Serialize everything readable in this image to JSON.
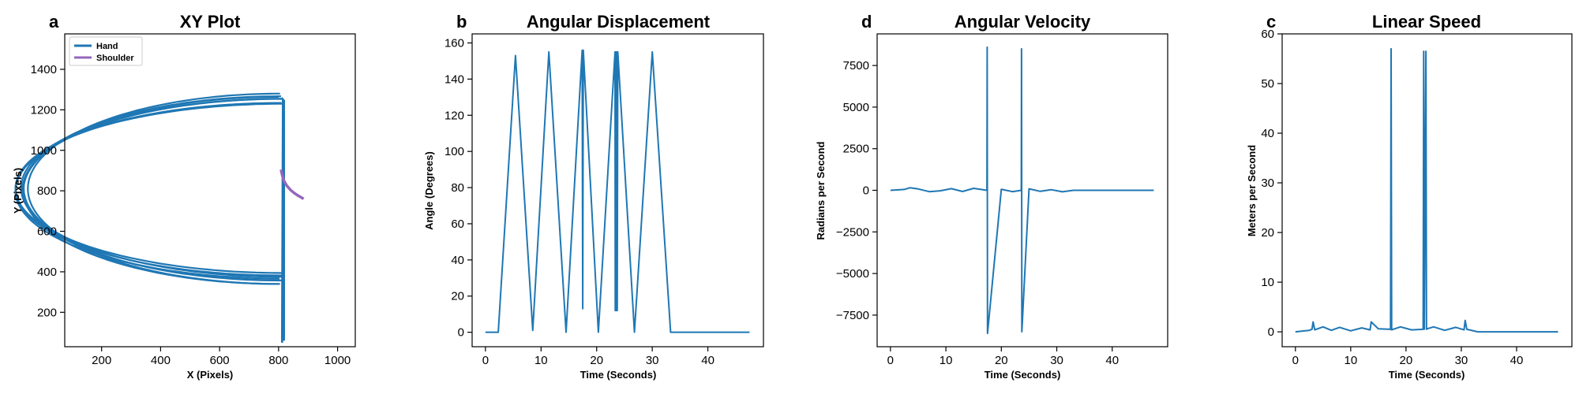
{
  "colors": {
    "hand": "#1f77b4",
    "shoulder": "#9467bd",
    "line": "#1f77b4"
  },
  "chart_data": [
    {
      "letter": "a",
      "type": "line",
      "title": "XY Plot",
      "xlabel": "X (Pixels)",
      "ylabel": "Y (Pixels)",
      "xlim": [
        75,
        1060
      ],
      "ylim": [
        30,
        1575
      ],
      "xticks": [
        200,
        400,
        600,
        800,
        1000
      ],
      "yticks": [
        200,
        400,
        600,
        800,
        1000,
        1200,
        1400
      ],
      "legend": "top-left",
      "series": [
        {
          "name": "Hand",
          "kind": "hand_arcs",
          "color": "#1f77b4"
        },
        {
          "name": "Shoulder",
          "color": "#9467bd",
          "x": [
            808,
            812,
            818,
            828,
            840,
            852,
            864,
            876,
            885
          ],
          "y": [
            905,
            880,
            850,
            825,
            805,
            790,
            778,
            768,
            760
          ]
        }
      ]
    },
    {
      "letter": "b",
      "type": "line",
      "title": "Angular Displacement",
      "xlabel": "Time (Seconds)",
      "ylabel": "Angle (Degrees)",
      "xlim": [
        -2.4,
        50.0
      ],
      "ylim": [
        -8,
        165
      ],
      "xticks": [
        0,
        10,
        20,
        30,
        40
      ],
      "yticks": [
        0,
        20,
        40,
        60,
        80,
        100,
        120,
        140,
        160
      ],
      "series": [
        {
          "name": "",
          "color": "#1f77b4",
          "x": [
            0,
            2.3,
            5.4,
            8.5,
            11.4,
            14.5,
            17.4,
            17.5,
            17.6,
            20.3,
            23.3,
            23.35,
            23.4,
            23.5,
            23.6,
            23.7,
            23.8,
            26.8,
            30.0,
            33.3,
            40.0,
            47.5
          ],
          "y": [
            0,
            0,
            153,
            1,
            155,
            0,
            156,
            13,
            156,
            0,
            155,
            12,
            155,
            12,
            155,
            12,
            155,
            0,
            155,
            0,
            0,
            0
          ]
        }
      ]
    },
    {
      "letter": "d",
      "type": "line",
      "title": "Angular Velocity",
      "xlabel": "Time (Seconds)",
      "ylabel": "Radians per Second",
      "xlim": [
        -2.4,
        50.0
      ],
      "ylim": [
        -9400,
        9400
      ],
      "xticks": [
        0,
        10,
        20,
        30,
        40
      ],
      "yticks": [
        -7500,
        -5000,
        -2500,
        0,
        2500,
        5000,
        7500
      ],
      "series": [
        {
          "name": "",
          "color": "#1f77b4",
          "x": [
            0,
            2.5,
            3.5,
            5,
            7,
            9,
            11,
            13,
            15,
            17.4,
            17.45,
            17.5,
            20,
            22,
            23.6,
            23.65,
            23.7,
            25,
            27,
            29,
            31,
            33,
            40,
            47.5
          ],
          "y": [
            0,
            50,
            150,
            80,
            -80,
            -30,
            100,
            -70,
            120,
            0,
            8600,
            -8600,
            60,
            -80,
            0,
            8500,
            -8500,
            90,
            -60,
            40,
            -90,
            0,
            0,
            0
          ]
        }
      ]
    },
    {
      "letter": "c",
      "type": "line",
      "title": "Linear Speed",
      "xlabel": "Time (Seconds)",
      "ylabel": "Meters per Second",
      "xlim": [
        -2.4,
        50.0
      ],
      "ylim": [
        -3,
        60
      ],
      "xticks": [
        0,
        10,
        20,
        30,
        40
      ],
      "yticks": [
        0,
        10,
        20,
        30,
        40,
        50,
        60
      ],
      "series": [
        {
          "name": "",
          "color": "#1f77b4",
          "x": [
            0,
            2.5,
            3.0,
            3.2,
            3.5,
            5,
            6.5,
            8,
            10,
            12,
            13.5,
            13.7,
            15,
            17.2,
            17.3,
            17.4,
            19,
            21,
            23.1,
            23.2,
            23.3,
            23.6,
            23.7,
            23.8,
            25,
            27,
            29,
            30.5,
            30.7,
            31,
            33,
            40,
            47.5
          ],
          "y": [
            0,
            0.3,
            0.5,
            2.0,
            0.4,
            1.0,
            0.3,
            0.9,
            0.2,
            0.8,
            0.4,
            2.0,
            0.6,
            0.5,
            57.0,
            0.4,
            1.0,
            0.4,
            0.5,
            56.5,
            0.5,
            56.5,
            0.5,
            0.6,
            1.0,
            0.3,
            0.9,
            0.4,
            2.3,
            0.5,
            0,
            0,
            0
          ]
        }
      ]
    }
  ]
}
